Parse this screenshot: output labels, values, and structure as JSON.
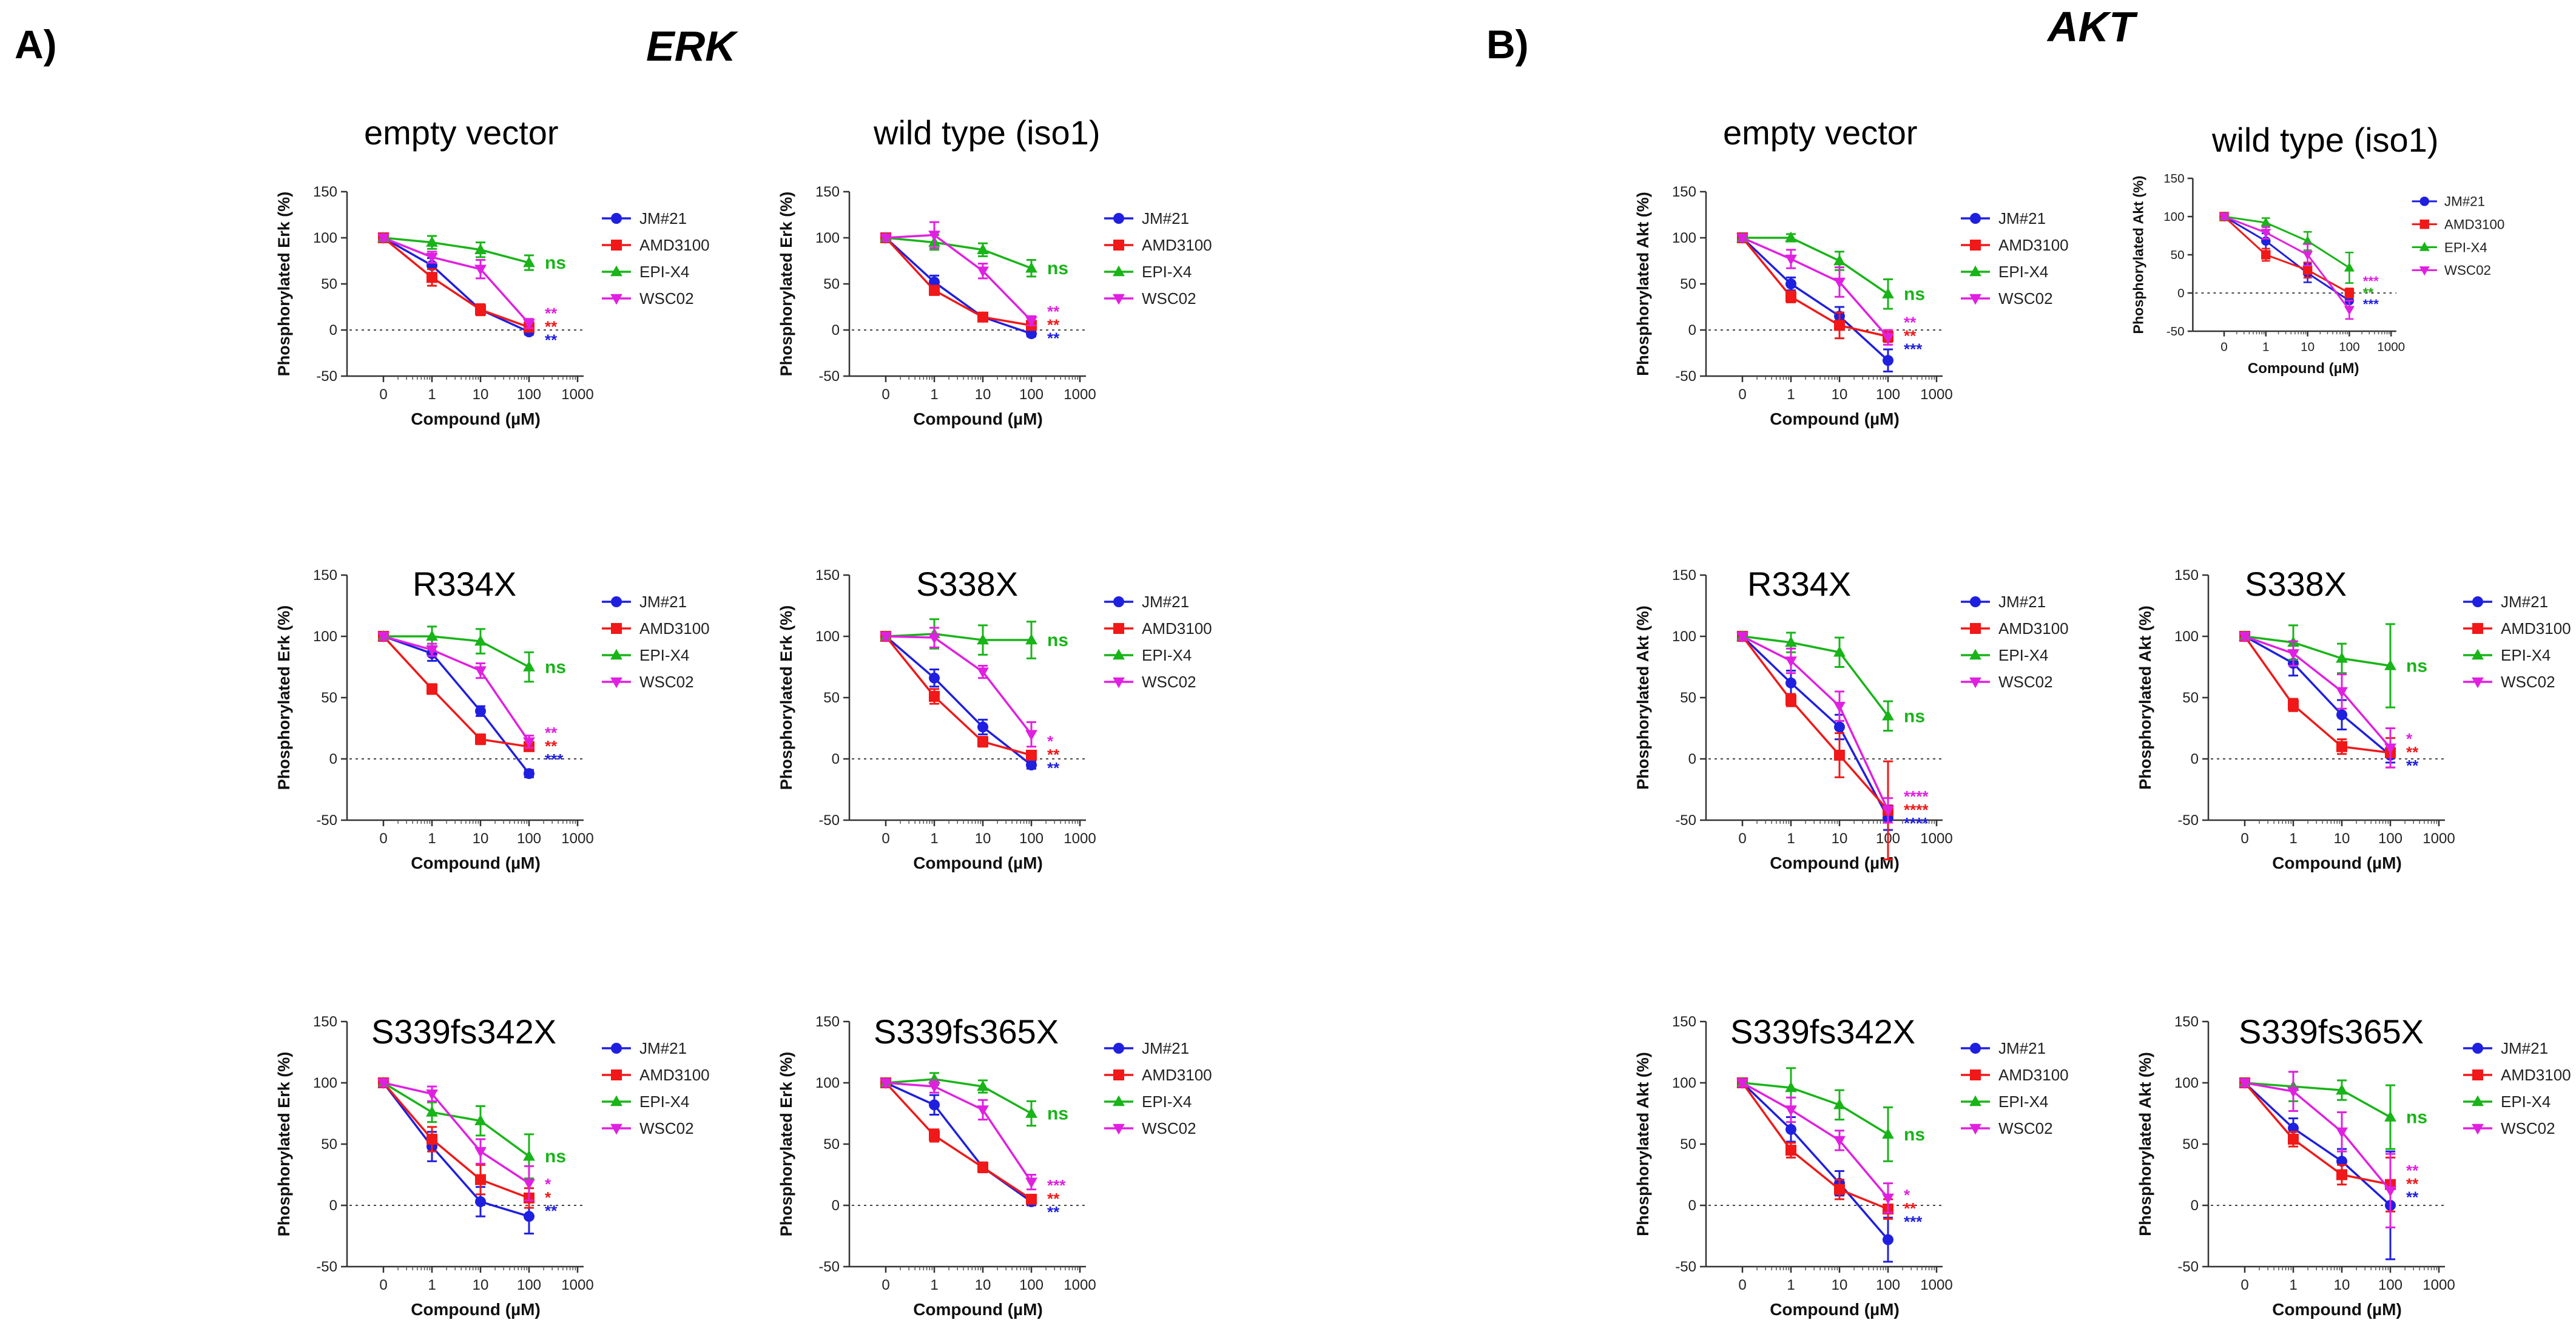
{
  "figure": {
    "panel_a_label": "A)",
    "panel_a_title": "ERK",
    "panel_b_label": "B)",
    "panel_b_title": "AKT"
  },
  "colors": {
    "JM#21": "#1f1fe0",
    "AMD3100": "#f01818",
    "EPI-X4": "#18b418",
    "WSC02": "#e020e0"
  },
  "legend_labels": [
    "JM#21",
    "AMD3100",
    "EPI-X4",
    "WSC02"
  ],
  "chart_data": [
    {
      "type": "line",
      "group": "ERK",
      "title": "empty vector",
      "ylabel": "Phosphorylated Erk (%)",
      "xlabel": "Compound (µM)",
      "x_ticks": [
        "0",
        "1",
        "10",
        "100",
        "1000"
      ],
      "y_ticks": [
        "-50",
        "0",
        "50",
        "100",
        "150"
      ],
      "ylim": [
        -50,
        150
      ],
      "series": [
        {
          "name": "JM#21",
          "values": [
            100,
            70,
            22,
            -2
          ],
          "err": [
            3,
            8,
            5,
            3
          ],
          "sig": "**"
        },
        {
          "name": "AMD3100",
          "values": [
            100,
            57,
            22,
            3
          ],
          "err": [
            3,
            9,
            6,
            4
          ],
          "sig": "**"
        },
        {
          "name": "EPI-X4",
          "values": [
            100,
            95,
            87,
            73
          ],
          "err": [
            3,
            7,
            8,
            8
          ],
          "sig": "ns"
        },
        {
          "name": "WSC02",
          "values": [
            100,
            79,
            66,
            7
          ],
          "err": [
            3,
            6,
            10,
            5
          ],
          "sig": "**"
        }
      ]
    },
    {
      "type": "line",
      "group": "ERK",
      "title": "wild type (iso1)",
      "ylabel": "Phosphorylated Erk (%)",
      "xlabel": "Compound (µM)",
      "x_ticks": [
        "0",
        "1",
        "10",
        "100",
        "1000"
      ],
      "y_ticks": [
        "-50",
        "0",
        "50",
        "100",
        "150"
      ],
      "ylim": [
        -50,
        150
      ],
      "series": [
        {
          "name": "JM#21",
          "values": [
            100,
            52,
            14,
            -4
          ],
          "err": [
            3,
            7,
            4,
            3
          ],
          "sig": "**"
        },
        {
          "name": "AMD3100",
          "values": [
            100,
            43,
            14,
            5
          ],
          "err": [
            3,
            5,
            3,
            3
          ],
          "sig": "**"
        },
        {
          "name": "EPI-X4",
          "values": [
            100,
            95,
            87,
            67
          ],
          "err": [
            3,
            8,
            7,
            9
          ],
          "sig": "ns"
        },
        {
          "name": "WSC02",
          "values": [
            100,
            103,
            64,
            10
          ],
          "err": [
            3,
            14,
            8,
            5
          ],
          "sig": "**"
        }
      ]
    },
    {
      "type": "line",
      "group": "ERK",
      "title": "R334X",
      "ylabel": "Phosphorylated Erk (%)",
      "xlabel": "Compound (µM)",
      "x_ticks": [
        "0",
        "1",
        "10",
        "100",
        "1000"
      ],
      "y_ticks": [
        "-50",
        "0",
        "50",
        "100",
        "150"
      ],
      "ylim": [
        -50,
        150
      ],
      "series": [
        {
          "name": "JM#21",
          "values": [
            100,
            86,
            39,
            -12
          ],
          "err": [
            3,
            6,
            4,
            3
          ],
          "sig": "***"
        },
        {
          "name": "AMD3100",
          "values": [
            100,
            57,
            16,
            10
          ],
          "err": [
            3,
            4,
            4,
            3
          ],
          "sig": "**"
        },
        {
          "name": "EPI-X4",
          "values": [
            100,
            100,
            96,
            75
          ],
          "err": [
            3,
            8,
            10,
            12
          ],
          "sig": "ns"
        },
        {
          "name": "WSC02",
          "values": [
            100,
            89,
            72,
            14
          ],
          "err": [
            3,
            5,
            6,
            5
          ],
          "sig": "**"
        }
      ]
    },
    {
      "type": "line",
      "group": "ERK",
      "title": "S338X",
      "ylabel": "Phosphorylated Erk (%)",
      "xlabel": "Compound (µM)",
      "x_ticks": [
        "0",
        "1",
        "10",
        "100",
        "1000"
      ],
      "y_ticks": [
        "-50",
        "0",
        "50",
        "100",
        "150"
      ],
      "ylim": [
        -50,
        150
      ],
      "series": [
        {
          "name": "JM#21",
          "values": [
            100,
            66,
            26,
            -5
          ],
          "err": [
            3,
            7,
            6,
            3
          ],
          "sig": "**"
        },
        {
          "name": "AMD3100",
          "values": [
            100,
            51,
            14,
            3
          ],
          "err": [
            3,
            6,
            4,
            3
          ],
          "sig": "**"
        },
        {
          "name": "EPI-X4",
          "values": [
            100,
            102,
            97,
            97
          ],
          "err": [
            3,
            12,
            12,
            15
          ],
          "sig": "ns"
        },
        {
          "name": "WSC02",
          "values": [
            100,
            99,
            71,
            20
          ],
          "err": [
            3,
            8,
            5,
            10
          ],
          "sig": "*"
        }
      ]
    },
    {
      "type": "line",
      "group": "ERK",
      "title": "S339fs342X",
      "ylabel": "Phosphorylated Erk (%)",
      "xlabel": "Compound (µM)",
      "x_ticks": [
        "0",
        "1",
        "10",
        "100",
        "1000"
      ],
      "y_ticks": [
        "-50",
        "0",
        "50",
        "100",
        "150"
      ],
      "ylim": [
        -50,
        150
      ],
      "series": [
        {
          "name": "JM#21",
          "values": [
            100,
            48,
            3,
            -9
          ],
          "err": [
            3,
            12,
            12,
            14
          ],
          "sig": "**"
        },
        {
          "name": "AMD3100",
          "values": [
            100,
            54,
            21,
            6
          ],
          "err": [
            3,
            10,
            12,
            8
          ],
          "sig": "*"
        },
        {
          "name": "EPI-X4",
          "values": [
            100,
            76,
            69,
            40
          ],
          "err": [
            3,
            8,
            12,
            18
          ],
          "sig": "ns"
        },
        {
          "name": "WSC02",
          "values": [
            100,
            91,
            44,
            18
          ],
          "err": [
            3,
            6,
            10,
            14
          ],
          "sig": "*"
        }
      ]
    },
    {
      "type": "line",
      "group": "ERK",
      "title": "S339fs365X",
      "ylabel": "Phosphorylated Erk (%)",
      "xlabel": "Compound (µM)",
      "x_ticks": [
        "0",
        "1",
        "10",
        "100",
        "1000"
      ],
      "y_ticks": [
        "-50",
        "0",
        "50",
        "100",
        "150"
      ],
      "ylim": [
        -50,
        150
      ],
      "series": [
        {
          "name": "JM#21",
          "values": [
            100,
            82,
            31,
            3
          ],
          "err": [
            3,
            8,
            4,
            3
          ],
          "sig": "**"
        },
        {
          "name": "AMD3100",
          "values": [
            100,
            57,
            31,
            5
          ],
          "err": [
            3,
            5,
            4,
            3
          ],
          "sig": "**"
        },
        {
          "name": "EPI-X4",
          "values": [
            100,
            103,
            97,
            75
          ],
          "err": [
            3,
            5,
            5,
            10
          ],
          "sig": "ns"
        },
        {
          "name": "WSC02",
          "values": [
            100,
            97,
            78,
            19
          ],
          "err": [
            3,
            5,
            8,
            6
          ],
          "sig": "***"
        }
      ]
    },
    {
      "type": "line",
      "group": "AKT",
      "title": "empty vector",
      "ylabel": "Phosphorylated Akt (%)",
      "xlabel": "Compound (µM)",
      "x_ticks": [
        "0",
        "1",
        "10",
        "100",
        "1000"
      ],
      "y_ticks": [
        "-50",
        "0",
        "50",
        "100",
        "150"
      ],
      "ylim": [
        -50,
        150
      ],
      "series": [
        {
          "name": "JM#21",
          "values": [
            100,
            50,
            15,
            -33
          ],
          "err": [
            3,
            7,
            10,
            12
          ],
          "sig": "***"
        },
        {
          "name": "AMD3100",
          "values": [
            100,
            36,
            5,
            -7
          ],
          "err": [
            3,
            6,
            14,
            6
          ],
          "sig": "**"
        },
        {
          "name": "EPI-X4",
          "values": [
            100,
            100,
            75,
            39
          ],
          "err": [
            3,
            4,
            10,
            16
          ],
          "sig": "ns"
        },
        {
          "name": "WSC02",
          "values": [
            100,
            77,
            52,
            -8
          ],
          "err": [
            3,
            10,
            16,
            8
          ],
          "sig": "**"
        }
      ]
    },
    {
      "type": "line",
      "group": "AKT",
      "title": "wild type (iso1)",
      "ylabel": "Phosphorylated Akt (%)",
      "xlabel": "Compound (µM)",
      "x_ticks": [
        "0",
        "1",
        "10",
        "100",
        "1000"
      ],
      "y_ticks": [
        "-50",
        "0",
        "50",
        "100",
        "150"
      ],
      "ylim": [
        -50,
        150
      ],
      "series": [
        {
          "name": "JM#21",
          "values": [
            100,
            68,
            26,
            -10
          ],
          "err": [
            3,
            10,
            12,
            8
          ],
          "sig": "***"
        },
        {
          "name": "AMD3100",
          "values": [
            100,
            50,
            30,
            0
          ],
          "err": [
            3,
            8,
            10,
            6
          ],
          "sig": "**"
        },
        {
          "name": "EPI-X4",
          "values": [
            100,
            92,
            68,
            33
          ],
          "err": [
            3,
            6,
            12,
            20
          ],
          "sig": "**"
        },
        {
          "name": "WSC02",
          "values": [
            100,
            79,
            50,
            -22
          ],
          "err": [
            3,
            8,
            14,
            12
          ],
          "sig": "***"
        }
      ]
    },
    {
      "type": "line",
      "group": "AKT",
      "title": "R334X",
      "ylabel": "Phosphorylated Akt (%)",
      "xlabel": "Compound (µM)",
      "x_ticks": [
        "0",
        "1",
        "10",
        "100",
        "1000"
      ],
      "y_ticks": [
        "-50",
        "0",
        "50",
        "100",
        "150"
      ],
      "ylim": [
        -50,
        150
      ],
      "series": [
        {
          "name": "JM#21",
          "values": [
            100,
            62,
            26,
            -48
          ],
          "err": [
            3,
            10,
            10,
            10
          ],
          "sig": "****"
        },
        {
          "name": "AMD3100",
          "values": [
            100,
            48,
            3,
            -42
          ],
          "err": [
            3,
            5,
            18,
            40
          ],
          "sig": "****"
        },
        {
          "name": "EPI-X4",
          "values": [
            100,
            95,
            87,
            35
          ],
          "err": [
            3,
            8,
            12,
            12
          ],
          "sig": "ns"
        },
        {
          "name": "WSC02",
          "values": [
            100,
            80,
            43,
            -42
          ],
          "err": [
            3,
            10,
            12,
            10
          ],
          "sig": "****"
        }
      ]
    },
    {
      "type": "line",
      "group": "AKT",
      "title": "S338X",
      "ylabel": "Phosphorylated Akt (%)",
      "xlabel": "Compound (µM)",
      "x_ticks": [
        "0",
        "1",
        "10",
        "100",
        "1000"
      ],
      "y_ticks": [
        "-50",
        "0",
        "50",
        "100",
        "150"
      ],
      "ylim": [
        -50,
        150
      ],
      "series": [
        {
          "name": "JM#21",
          "values": [
            100,
            78,
            36,
            3
          ],
          "err": [
            3,
            10,
            12,
            6
          ],
          "sig": "**"
        },
        {
          "name": "AMD3100",
          "values": [
            100,
            44,
            10,
            5
          ],
          "err": [
            3,
            5,
            6,
            12
          ],
          "sig": "**"
        },
        {
          "name": "EPI-X4",
          "values": [
            100,
            95,
            82,
            76
          ],
          "err": [
            3,
            14,
            12,
            34
          ],
          "sig": "ns"
        },
        {
          "name": "WSC02",
          "values": [
            100,
            86,
            55,
            9
          ],
          "err": [
            3,
            10,
            14,
            16
          ],
          "sig": "*"
        }
      ]
    },
    {
      "type": "line",
      "group": "AKT",
      "title": "S339fs342X",
      "ylabel": "Phosphorylated Akt (%)",
      "xlabel": "Compound (µM)",
      "x_ticks": [
        "0",
        "1",
        "10",
        "100",
        "1000"
      ],
      "y_ticks": [
        "-50",
        "0",
        "50",
        "100",
        "150"
      ],
      "ylim": [
        -50,
        150
      ],
      "series": [
        {
          "name": "JM#21",
          "values": [
            100,
            62,
            18,
            -28
          ],
          "err": [
            3,
            10,
            10,
            18
          ],
          "sig": "***"
        },
        {
          "name": "AMD3100",
          "values": [
            100,
            45,
            13,
            -3
          ],
          "err": [
            3,
            6,
            8,
            8
          ],
          "sig": "**"
        },
        {
          "name": "EPI-X4",
          "values": [
            100,
            96,
            82,
            58
          ],
          "err": [
            3,
            16,
            12,
            22
          ],
          "sig": "ns"
        },
        {
          "name": "WSC02",
          "values": [
            100,
            78,
            53,
            6
          ],
          "err": [
            3,
            10,
            8,
            12
          ],
          "sig": "*"
        }
      ]
    },
    {
      "type": "line",
      "group": "AKT",
      "title": "S339fs365X",
      "ylabel": "Phosphorylated Akt (%)",
      "xlabel": "Compound (µM)",
      "x_ticks": [
        "0",
        "1",
        "10",
        "100",
        "1000"
      ],
      "y_ticks": [
        "-50",
        "0",
        "50",
        "100",
        "150"
      ],
      "ylim": [
        -50,
        150
      ],
      "series": [
        {
          "name": "JM#21",
          "values": [
            100,
            63,
            36,
            0
          ],
          "err": [
            3,
            8,
            10,
            44
          ],
          "sig": "**"
        },
        {
          "name": "AMD3100",
          "values": [
            100,
            54,
            25,
            17
          ],
          "err": [
            3,
            6,
            8,
            22
          ],
          "sig": "**"
        },
        {
          "name": "EPI-X4",
          "values": [
            100,
            97,
            94,
            72
          ],
          "err": [
            3,
            12,
            8,
            26
          ],
          "sig": "ns"
        },
        {
          "name": "WSC02",
          "values": [
            100,
            93,
            60,
            12
          ],
          "err": [
            3,
            16,
            16,
            30
          ],
          "sig": "**"
        }
      ]
    }
  ]
}
